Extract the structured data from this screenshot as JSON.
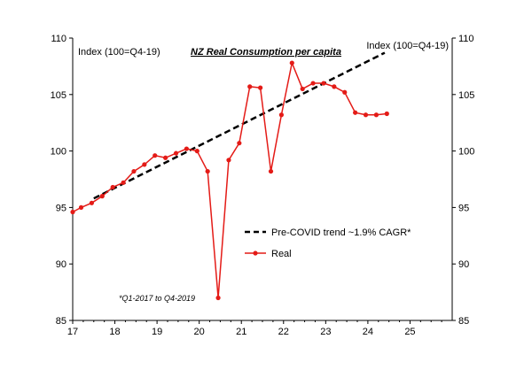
{
  "chart_data": {
    "type": "line",
    "title": "NZ Real Consumption per capita",
    "ylabel_left": "Index (100=Q4-19)",
    "ylabel_right": "Index (100=Q4-19)",
    "annotation": "*Q1-2017 to Q4-2019",
    "xlim": [
      17,
      26
    ],
    "ylim": [
      85,
      110
    ],
    "x_ticks": [
      17,
      18,
      19,
      20,
      21,
      22,
      23,
      24,
      25
    ],
    "y_ticks": [
      85,
      90,
      95,
      100,
      105,
      110
    ],
    "grid": false,
    "legend_position": "right",
    "series": [
      {
        "name": "Pre-COVID trend ~1.9% CAGR*",
        "style": "dashed",
        "color": "#000000",
        "x": [
          17.5,
          24.4
        ],
        "y": [
          95.8,
          108.7
        ]
      },
      {
        "name": "Real",
        "style": "line-marker",
        "color": "#e41b17",
        "x": [
          17.0,
          17.2,
          17.45,
          17.7,
          17.95,
          18.2,
          18.45,
          18.7,
          18.95,
          19.2,
          19.45,
          19.7,
          19.95,
          20.2,
          20.45,
          20.7,
          20.95,
          21.2,
          21.45,
          21.7,
          21.95,
          22.2,
          22.45,
          22.7,
          22.95,
          23.2,
          23.45,
          23.7,
          23.95,
          24.2,
          24.45
        ],
        "y": [
          94.6,
          95.0,
          95.4,
          96.0,
          96.8,
          97.2,
          98.2,
          98.8,
          99.6,
          99.4,
          99.8,
          100.2,
          100.0,
          98.2,
          87.0,
          99.2,
          100.7,
          105.7,
          105.6,
          98.2,
          103.2,
          107.8,
          105.5,
          106.0,
          106.0,
          105.7,
          105.2,
          103.4,
          103.2,
          103.2,
          103.3
        ]
      }
    ]
  }
}
